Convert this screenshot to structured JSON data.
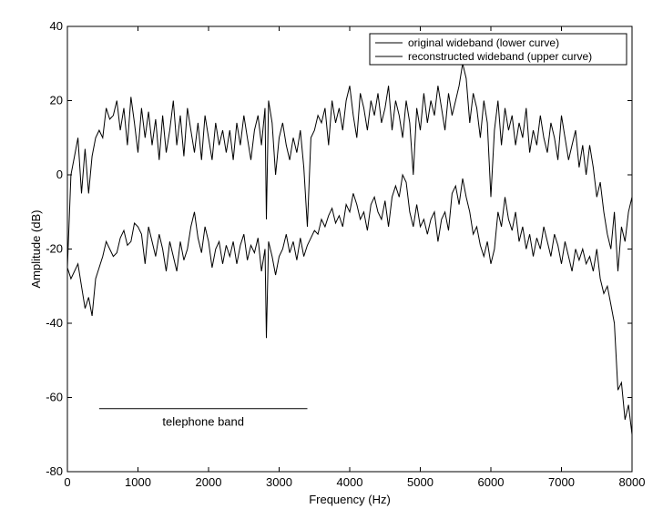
{
  "chart_data": {
    "type": "line",
    "title": "",
    "xlabel": "Frequency (Hz)",
    "ylabel": "Amplitude (dB)",
    "xlim": [
      0,
      8000
    ],
    "ylim": [
      -80,
      40
    ],
    "x_ticks": [
      0,
      1000,
      2000,
      3000,
      4000,
      5000,
      6000,
      7000,
      8000
    ],
    "y_ticks": [
      -80,
      -60,
      -40,
      -20,
      0,
      20,
      40
    ],
    "grid": false,
    "legend_position": "top-right",
    "series": [
      {
        "name": "original wideband (lower curve)",
        "color": "#000000",
        "points": [
          [
            0,
            -25
          ],
          [
            50,
            -28
          ],
          [
            100,
            -26
          ],
          [
            150,
            -24
          ],
          [
            200,
            -30
          ],
          [
            250,
            -36
          ],
          [
            300,
            -33
          ],
          [
            350,
            -38
          ],
          [
            400,
            -28
          ],
          [
            450,
            -25
          ],
          [
            500,
            -22
          ],
          [
            550,
            -18
          ],
          [
            600,
            -20
          ],
          [
            650,
            -22
          ],
          [
            700,
            -21
          ],
          [
            750,
            -17
          ],
          [
            800,
            -15
          ],
          [
            850,
            -19
          ],
          [
            900,
            -18
          ],
          [
            950,
            -13
          ],
          [
            1000,
            -14
          ],
          [
            1050,
            -16
          ],
          [
            1100,
            -24
          ],
          [
            1150,
            -14
          ],
          [
            1200,
            -18
          ],
          [
            1250,
            -22
          ],
          [
            1300,
            -16
          ],
          [
            1350,
            -20
          ],
          [
            1400,
            -26
          ],
          [
            1450,
            -18
          ],
          [
            1500,
            -22
          ],
          [
            1550,
            -26
          ],
          [
            1600,
            -18
          ],
          [
            1650,
            -23
          ],
          [
            1700,
            -20
          ],
          [
            1750,
            -14
          ],
          [
            1800,
            -10
          ],
          [
            1850,
            -17
          ],
          [
            1900,
            -21
          ],
          [
            1950,
            -14
          ],
          [
            2000,
            -18
          ],
          [
            2050,
            -25
          ],
          [
            2100,
            -20
          ],
          [
            2150,
            -18
          ],
          [
            2200,
            -24
          ],
          [
            2250,
            -19
          ],
          [
            2300,
            -22
          ],
          [
            2350,
            -18
          ],
          [
            2400,
            -24
          ],
          [
            2450,
            -19
          ],
          [
            2500,
            -16
          ],
          [
            2550,
            -23
          ],
          [
            2600,
            -19
          ],
          [
            2650,
            -21
          ],
          [
            2700,
            -17
          ],
          [
            2750,
            -26
          ],
          [
            2800,
            -20
          ],
          [
            2820,
            -44
          ],
          [
            2850,
            -18
          ],
          [
            2900,
            -22
          ],
          [
            2950,
            -27
          ],
          [
            3000,
            -22
          ],
          [
            3050,
            -20
          ],
          [
            3100,
            -16
          ],
          [
            3150,
            -21
          ],
          [
            3200,
            -18
          ],
          [
            3250,
            -23
          ],
          [
            3300,
            -17
          ],
          [
            3350,
            -22
          ],
          [
            3400,
            -19
          ],
          [
            3450,
            -17
          ],
          [
            3500,
            -15
          ],
          [
            3550,
            -16
          ],
          [
            3600,
            -12
          ],
          [
            3650,
            -14
          ],
          [
            3700,
            -11
          ],
          [
            3750,
            -9
          ],
          [
            3800,
            -13
          ],
          [
            3850,
            -11
          ],
          [
            3900,
            -14
          ],
          [
            3950,
            -8
          ],
          [
            4000,
            -10
          ],
          [
            4050,
            -5
          ],
          [
            4100,
            -8
          ],
          [
            4150,
            -12
          ],
          [
            4200,
            -10
          ],
          [
            4250,
            -15
          ],
          [
            4300,
            -8
          ],
          [
            4350,
            -6
          ],
          [
            4400,
            -10
          ],
          [
            4450,
            -12
          ],
          [
            4500,
            -7
          ],
          [
            4550,
            -14
          ],
          [
            4600,
            -6
          ],
          [
            4650,
            -3
          ],
          [
            4700,
            -6
          ],
          [
            4750,
            0
          ],
          [
            4800,
            -2
          ],
          [
            4850,
            -10
          ],
          [
            4900,
            -14
          ],
          [
            4950,
            -8
          ],
          [
            5000,
            -14
          ],
          [
            5050,
            -12
          ],
          [
            5100,
            -16
          ],
          [
            5150,
            -12
          ],
          [
            5200,
            -10
          ],
          [
            5250,
            -18
          ],
          [
            5300,
            -12
          ],
          [
            5350,
            -10
          ],
          [
            5400,
            -15
          ],
          [
            5450,
            -5
          ],
          [
            5500,
            -3
          ],
          [
            5550,
            -8
          ],
          [
            5600,
            -1
          ],
          [
            5650,
            -6
          ],
          [
            5700,
            -10
          ],
          [
            5750,
            -16
          ],
          [
            5800,
            -14
          ],
          [
            5850,
            -19
          ],
          [
            5900,
            -22
          ],
          [
            5950,
            -18
          ],
          [
            6000,
            -24
          ],
          [
            6050,
            -20
          ],
          [
            6100,
            -10
          ],
          [
            6150,
            -14
          ],
          [
            6200,
            -6
          ],
          [
            6250,
            -12
          ],
          [
            6300,
            -15
          ],
          [
            6350,
            -10
          ],
          [
            6400,
            -18
          ],
          [
            6450,
            -14
          ],
          [
            6500,
            -20
          ],
          [
            6550,
            -16
          ],
          [
            6600,
            -22
          ],
          [
            6650,
            -17
          ],
          [
            6700,
            -20
          ],
          [
            6750,
            -14
          ],
          [
            6800,
            -18
          ],
          [
            6850,
            -22
          ],
          [
            6900,
            -16
          ],
          [
            6950,
            -19
          ],
          [
            7000,
            -24
          ],
          [
            7050,
            -18
          ],
          [
            7100,
            -22
          ],
          [
            7150,
            -26
          ],
          [
            7200,
            -20
          ],
          [
            7250,
            -23
          ],
          [
            7300,
            -20
          ],
          [
            7350,
            -24
          ],
          [
            7400,
            -22
          ],
          [
            7450,
            -26
          ],
          [
            7500,
            -20
          ],
          [
            7550,
            -28
          ],
          [
            7600,
            -32
          ],
          [
            7650,
            -30
          ],
          [
            7700,
            -35
          ],
          [
            7750,
            -40
          ],
          [
            7800,
            -58
          ],
          [
            7850,
            -56
          ],
          [
            7900,
            -66
          ],
          [
            7950,
            -62
          ],
          [
            8000,
            -70
          ]
        ]
      },
      {
        "name": "reconstructed wideband (upper curve)",
        "color": "#000000",
        "points": [
          [
            0,
            -25
          ],
          [
            50,
            0
          ],
          [
            100,
            5
          ],
          [
            150,
            10
          ],
          [
            200,
            -5
          ],
          [
            250,
            7
          ],
          [
            300,
            -5
          ],
          [
            350,
            5
          ],
          [
            400,
            10
          ],
          [
            450,
            12
          ],
          [
            500,
            10
          ],
          [
            550,
            18
          ],
          [
            600,
            15
          ],
          [
            650,
            16
          ],
          [
            700,
            20
          ],
          [
            750,
            12
          ],
          [
            800,
            18
          ],
          [
            850,
            8
          ],
          [
            900,
            21
          ],
          [
            950,
            14
          ],
          [
            1000,
            6
          ],
          [
            1050,
            18
          ],
          [
            1100,
            10
          ],
          [
            1150,
            17
          ],
          [
            1200,
            8
          ],
          [
            1250,
            15
          ],
          [
            1300,
            4
          ],
          [
            1350,
            16
          ],
          [
            1400,
            6
          ],
          [
            1450,
            12
          ],
          [
            1500,
            20
          ],
          [
            1550,
            8
          ],
          [
            1600,
            16
          ],
          [
            1650,
            5
          ],
          [
            1700,
            18
          ],
          [
            1750,
            12
          ],
          [
            1800,
            6
          ],
          [
            1850,
            14
          ],
          [
            1900,
            4
          ],
          [
            1950,
            16
          ],
          [
            2000,
            10
          ],
          [
            2050,
            4
          ],
          [
            2100,
            14
          ],
          [
            2150,
            8
          ],
          [
            2200,
            12
          ],
          [
            2250,
            6
          ],
          [
            2300,
            12
          ],
          [
            2350,
            4
          ],
          [
            2400,
            14
          ],
          [
            2450,
            8
          ],
          [
            2500,
            16
          ],
          [
            2550,
            10
          ],
          [
            2600,
            4
          ],
          [
            2650,
            12
          ],
          [
            2700,
            16
          ],
          [
            2750,
            8
          ],
          [
            2800,
            18
          ],
          [
            2820,
            -12
          ],
          [
            2850,
            20
          ],
          [
            2900,
            14
          ],
          [
            2950,
            0
          ],
          [
            3000,
            10
          ],
          [
            3050,
            14
          ],
          [
            3100,
            8
          ],
          [
            3150,
            4
          ],
          [
            3200,
            10
          ],
          [
            3250,
            6
          ],
          [
            3300,
            12
          ],
          [
            3350,
            2
          ],
          [
            3400,
            -14
          ],
          [
            3450,
            10
          ],
          [
            3500,
            12
          ],
          [
            3550,
            16
          ],
          [
            3600,
            14
          ],
          [
            3650,
            18
          ],
          [
            3700,
            8
          ],
          [
            3750,
            20
          ],
          [
            3800,
            14
          ],
          [
            3850,
            18
          ],
          [
            3900,
            12
          ],
          [
            3950,
            20
          ],
          [
            4000,
            24
          ],
          [
            4050,
            16
          ],
          [
            4100,
            10
          ],
          [
            4150,
            22
          ],
          [
            4200,
            18
          ],
          [
            4250,
            12
          ],
          [
            4300,
            20
          ],
          [
            4350,
            16
          ],
          [
            4400,
            22
          ],
          [
            4450,
            14
          ],
          [
            4500,
            18
          ],
          [
            4550,
            24
          ],
          [
            4600,
            12
          ],
          [
            4650,
            20
          ],
          [
            4700,
            16
          ],
          [
            4750,
            10
          ],
          [
            4800,
            20
          ],
          [
            4850,
            14
          ],
          [
            4900,
            0
          ],
          [
            4950,
            18
          ],
          [
            5000,
            12
          ],
          [
            5050,
            22
          ],
          [
            5100,
            14
          ],
          [
            5150,
            20
          ],
          [
            5200,
            16
          ],
          [
            5250,
            24
          ],
          [
            5300,
            18
          ],
          [
            5350,
            12
          ],
          [
            5400,
            22
          ],
          [
            5450,
            16
          ],
          [
            5500,
            20
          ],
          [
            5550,
            24
          ],
          [
            5600,
            30
          ],
          [
            5650,
            26
          ],
          [
            5700,
            14
          ],
          [
            5750,
            22
          ],
          [
            5800,
            18
          ],
          [
            5850,
            10
          ],
          [
            5900,
            20
          ],
          [
            5950,
            14
          ],
          [
            6000,
            -6
          ],
          [
            6050,
            12
          ],
          [
            6100,
            20
          ],
          [
            6150,
            8
          ],
          [
            6200,
            18
          ],
          [
            6250,
            12
          ],
          [
            6300,
            16
          ],
          [
            6350,
            8
          ],
          [
            6400,
            14
          ],
          [
            6450,
            10
          ],
          [
            6500,
            18
          ],
          [
            6550,
            6
          ],
          [
            6600,
            12
          ],
          [
            6650,
            8
          ],
          [
            6700,
            16
          ],
          [
            6750,
            10
          ],
          [
            6800,
            6
          ],
          [
            6850,
            14
          ],
          [
            6900,
            10
          ],
          [
            6950,
            4
          ],
          [
            7000,
            16
          ],
          [
            7050,
            10
          ],
          [
            7100,
            4
          ],
          [
            7150,
            8
          ],
          [
            7200,
            12
          ],
          [
            7250,
            2
          ],
          [
            7300,
            8
          ],
          [
            7350,
            0
          ],
          [
            7400,
            8
          ],
          [
            7450,
            2
          ],
          [
            7500,
            -6
          ],
          [
            7550,
            -2
          ],
          [
            7600,
            -10
          ],
          [
            7650,
            -16
          ],
          [
            7700,
            -20
          ],
          [
            7750,
            -10
          ],
          [
            7800,
            -26
          ],
          [
            7850,
            -14
          ],
          [
            7900,
            -18
          ],
          [
            7950,
            -10
          ],
          [
            8000,
            -6
          ]
        ]
      }
    ],
    "annotations": [
      {
        "text": "telephone band",
        "x_range": [
          450,
          3400
        ],
        "y": -63
      }
    ]
  }
}
